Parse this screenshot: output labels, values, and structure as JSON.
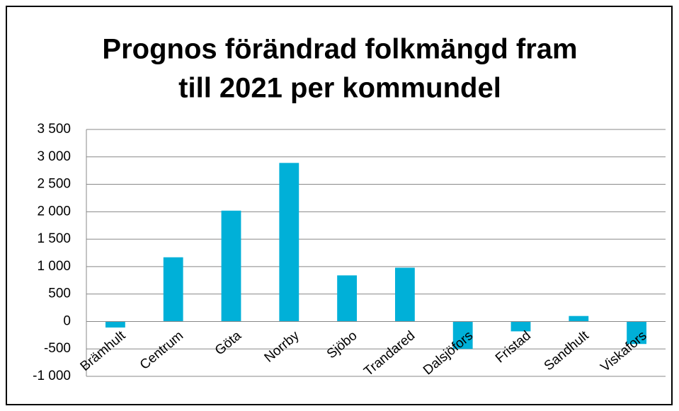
{
  "chart_data": {
    "type": "bar",
    "title": [
      "Prognos förändrad folkmängd fram",
      "till 2021 per kommundel"
    ],
    "categories": [
      "Brämhult",
      "Centrum",
      "Göta",
      "Norrby",
      "Sjöbo",
      "Trandared",
      "Dalsjöfors",
      "Fristad",
      "Sandhult",
      "Viskafors"
    ],
    "values": [
      -110,
      1170,
      2020,
      2890,
      840,
      980,
      -500,
      -180,
      100,
      -410
    ],
    "color": "#00b0d8",
    "ylim": [
      -1000,
      3500
    ],
    "yticks": [
      {
        "value": -1000,
        "label": "-1 000"
      },
      -500,
      0,
      500,
      {
        "value": 1000,
        "label": "1 000"
      },
      {
        "value": 1500,
        "label": "1 500"
      },
      {
        "value": 2000,
        "label": "2 000"
      },
      {
        "value": 2500,
        "label": "2 500"
      },
      {
        "value": 3000,
        "label": "3 000"
      },
      {
        "value": 3500,
        "label": "3 500"
      }
    ],
    "grid": true
  }
}
